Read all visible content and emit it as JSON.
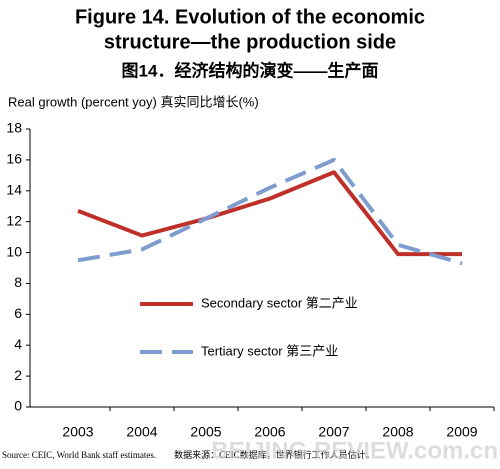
{
  "chart_data": {
    "type": "line",
    "title": [
      "Figure 14. Evolution of the economic",
      "structure—the production side"
    ],
    "subtitle": "图14．经济结构的演变——生产面",
    "y_label": "Real growth (percent yoy)  真实同比增长(%)",
    "categories": [
      "2003",
      "2004",
      "2005",
      "2006",
      "2007",
      "2008",
      "2009"
    ],
    "series": [
      {
        "name": "Secondary sector  第二产业",
        "color": "#c0302a",
        "line_style": "solid",
        "values": [
          12.7,
          11.1,
          12.2,
          13.5,
          15.2,
          9.9,
          9.9
        ]
      },
      {
        "name": "Tertiary sector  第三产业",
        "color": "#7f9ccf",
        "line_style": "dashed",
        "values": [
          9.5,
          10.2,
          12.2,
          14.2,
          16.0,
          10.5,
          9.3
        ]
      }
    ],
    "ylim": [
      0,
      18
    ],
    "yticks": [
      0,
      2,
      4,
      6,
      8,
      10,
      12,
      14,
      16,
      18
    ],
    "source": "Source: CEIC, World Bank staff estimates.　　数据来源：CEIC数据库，世界银行工作人员估计。",
    "watermark": "BEIJING REVIEW.com.cn"
  }
}
